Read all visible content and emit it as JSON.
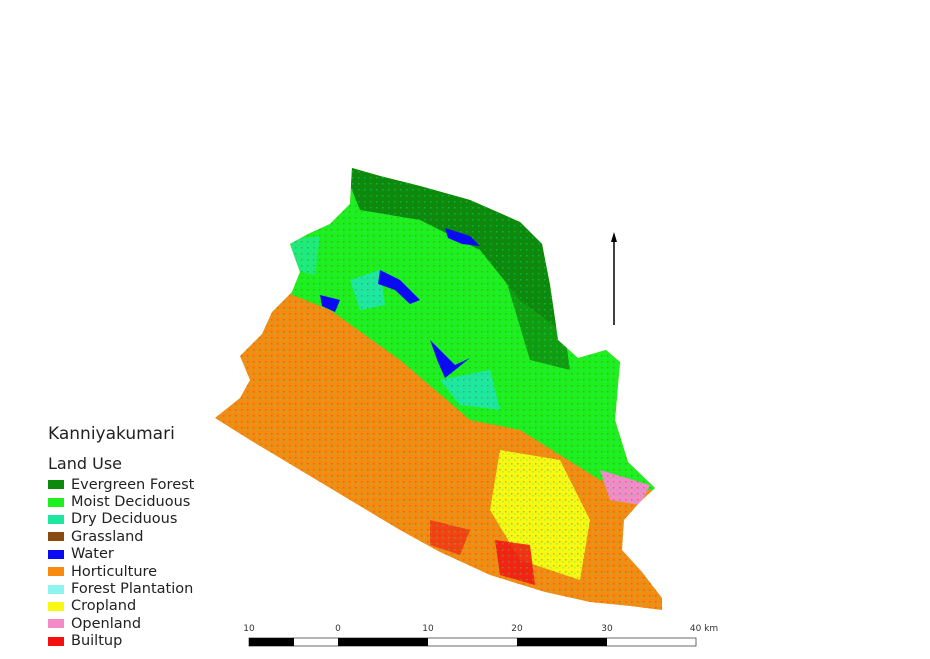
{
  "map": {
    "title": "Kanniyakumari",
    "legend_title": "Land Use",
    "legend": [
      {
        "label": "Evergreen Forest",
        "color": "#0b8a0b"
      },
      {
        "label": "Moist Deciduous",
        "color": "#1ef01e"
      },
      {
        "label": "Dry Deciduous",
        "color": "#1ee8a0"
      },
      {
        "label": "Grassland",
        "color": "#8b4a12"
      },
      {
        "label": "Water",
        "color": "#0a0af5"
      },
      {
        "label": "Horticulture",
        "color": "#f88a10"
      },
      {
        "label": "Forest Plantation",
        "color": "#8ef4f0"
      },
      {
        "label": "Cropland",
        "color": "#f8f810"
      },
      {
        "label": "Openland",
        "color": "#f48ac8"
      },
      {
        "label": "Builtup",
        "color": "#f51010"
      }
    ],
    "scale_bar": {
      "ticks": [
        "10",
        "0",
        "10",
        "20",
        "30",
        "40 km"
      ]
    },
    "north_arrow": "north-arrow-icon"
  }
}
